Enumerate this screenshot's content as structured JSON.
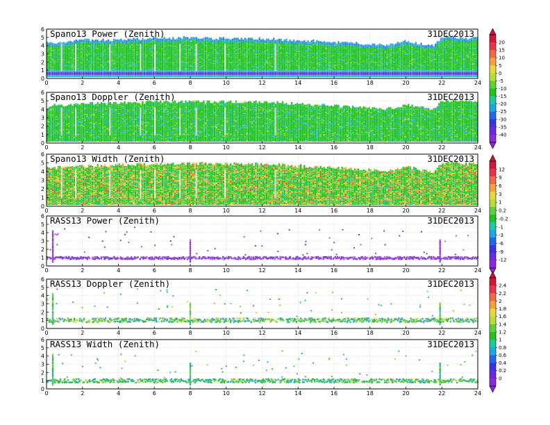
{
  "chart_data": [
    {
      "type": "heatmap",
      "title": "Spano13 Power (Zenith)",
      "date": "31DEC2013",
      "x_ticks": [
        "0",
        "2",
        "4",
        "6",
        "8",
        "10",
        "12",
        "14",
        "16",
        "18",
        "20",
        "22",
        "24"
      ],
      "y_ticks": [
        "0",
        "1",
        "2",
        "3",
        "4",
        "5",
        "6"
      ],
      "xlim": [
        0,
        24
      ],
      "ylim": [
        0,
        6
      ],
      "grid": true,
      "colorbar": {
        "ticks": [
          "20",
          "15",
          "10",
          "5",
          "0",
          "-5",
          "-10",
          "-15",
          "-20",
          "-25",
          "-30",
          "-35",
          "-40"
        ],
        "range": [
          -42,
          22
        ],
        "shared_with_panel": 2
      },
      "style": "profiler-power",
      "coverage": {
        "hours": [
          0,
          0.5,
          2,
          5.5,
          8,
          12,
          14,
          16,
          17.5,
          19,
          20,
          21.5,
          22,
          22.3,
          23.5,
          24
        ],
        "top_km": [
          4.3,
          4.4,
          4.6,
          4.8,
          4.9,
          4.8,
          4.6,
          4.4,
          4.2,
          4.0,
          4.5,
          3.9,
          4.9,
          5.0,
          4.9,
          4.9
        ]
      }
    },
    {
      "type": "heatmap",
      "title": "Spano13 Doppler (Zenith)",
      "date": "31DEC2013",
      "x_ticks": [
        "0",
        "2",
        "4",
        "6",
        "8",
        "10",
        "12",
        "14",
        "16",
        "18",
        "20",
        "22",
        "24"
      ],
      "y_ticks": [
        "0",
        "1",
        "2",
        "3",
        "4",
        "5",
        "6"
      ],
      "xlim": [
        0,
        24
      ],
      "ylim": [
        0,
        6
      ],
      "grid": true,
      "style": "profiler-doppler",
      "coverage": {
        "hours": [
          0,
          0.5,
          2,
          5.5,
          8,
          12,
          14,
          16,
          17.5,
          19,
          20,
          21.5,
          22,
          22.3,
          23.5,
          24
        ],
        "top_km": [
          4.3,
          4.4,
          4.6,
          4.8,
          4.9,
          4.8,
          4.6,
          4.4,
          4.2,
          4.0,
          4.5,
          3.9,
          4.9,
          5.0,
          4.9,
          4.9
        ]
      }
    },
    {
      "type": "heatmap",
      "title": "Spano13 Width (Zenith)",
      "date": "31DEC2013",
      "x_ticks": [
        "0",
        "2",
        "4",
        "6",
        "8",
        "10",
        "12",
        "14",
        "16",
        "18",
        "20",
        "22",
        "24"
      ],
      "y_ticks": [
        "0",
        "1",
        "2",
        "3",
        "4",
        "5",
        "6"
      ],
      "xlim": [
        0,
        24
      ],
      "ylim": [
        0,
        6
      ],
      "grid": true,
      "colorbar": {
        "ticks": [
          "12",
          "9",
          "6",
          "3",
          "1",
          "0.2",
          "-0.2",
          "-1",
          "-3",
          "-6",
          "-9",
          "-12"
        ],
        "range": [
          -13,
          13
        ],
        "shared_with_panel": 4
      },
      "style": "profiler-width",
      "coverage": {
        "hours": [
          0,
          0.5,
          2,
          5.5,
          8,
          12,
          14,
          16,
          17.5,
          19,
          20,
          21.5,
          22,
          22.3,
          23.5,
          24
        ],
        "top_km": [
          4.3,
          4.4,
          4.6,
          4.8,
          4.9,
          4.8,
          4.6,
          4.4,
          4.2,
          4.0,
          4.5,
          3.9,
          4.9,
          5.0,
          4.9,
          4.9
        ]
      }
    },
    {
      "type": "heatmap",
      "title": "RASS13 Power (Zenith)",
      "date": "31DEC2013",
      "x_ticks": [
        "0",
        "2",
        "4",
        "6",
        "8",
        "10",
        "12",
        "14",
        "16",
        "18",
        "20",
        "22",
        "24"
      ],
      "y_ticks": [
        "0",
        "1",
        "2",
        "3",
        "4",
        "5",
        "6"
      ],
      "xlim": [
        0,
        24
      ],
      "ylim": [
        0,
        6
      ],
      "grid": true,
      "style": "rass-power",
      "band_km": [
        0.8,
        1.1
      ],
      "spike_hours": [
        0.35,
        8.0,
        21.9
      ]
    },
    {
      "type": "heatmap",
      "title": "RASS13 Doppler (Zenith)",
      "date": "31DEC2013",
      "x_ticks": [
        "0",
        "2",
        "4",
        "6",
        "8",
        "10",
        "12",
        "14",
        "16",
        "18",
        "20",
        "22",
        "24"
      ],
      "y_ticks": [
        "0",
        "1",
        "2",
        "3",
        "4",
        "5",
        "6"
      ],
      "xlim": [
        0,
        24
      ],
      "ylim": [
        0,
        6
      ],
      "grid": true,
      "colorbar": {
        "ticks": [
          "2.4",
          "2.2",
          "2",
          "1.8",
          "1.6",
          "1.4",
          "1.2",
          "1",
          "0.8",
          "0.6",
          "0.4",
          "0.2",
          "0"
        ],
        "range": [
          -0.1,
          2.5
        ],
        "shared_with_panel": 6
      },
      "style": "rass-doppler",
      "band_km": [
        0.75,
        1.25
      ],
      "spike_hours": [
        0.35,
        8.0,
        21.9
      ]
    },
    {
      "type": "heatmap",
      "title": "RASS13 Width (Zenith)",
      "date": "31DEC2013",
      "x_ticks": [
        "0",
        "2",
        "4",
        "6",
        "8",
        "10",
        "12",
        "14",
        "16",
        "18",
        "20",
        "22",
        "24"
      ],
      "y_ticks": [
        "0",
        "1",
        "2",
        "3",
        "4",
        "5",
        "6"
      ],
      "xlim": [
        0,
        24
      ],
      "ylim": [
        0,
        6
      ],
      "grid": true,
      "style": "rass-width",
      "band_km": [
        0.75,
        1.2
      ],
      "spike_hours": [
        0.35,
        8.0,
        21.9
      ]
    }
  ]
}
